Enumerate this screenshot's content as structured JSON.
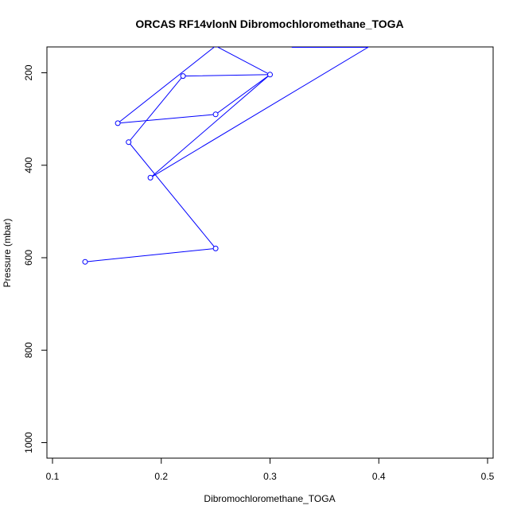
{
  "chart_data": {
    "type": "line",
    "title": "ORCAS RF14vlonN Dibromochloromethane_TOGA",
    "xlabel": "Dibromochloromethane_TOGA",
    "ylabel": "Pressure (mbar)",
    "xlim": [
      0.1,
      0.5
    ],
    "ylim": [
      1000,
      145
    ],
    "y_axis_reversed": true,
    "x_ticks": [
      0.1,
      0.2,
      0.3,
      0.4,
      0.5
    ],
    "x_tick_labels": [
      "0.1",
      "0.2",
      "0.3",
      "0.4",
      "0.5"
    ],
    "y_ticks": [
      200,
      400,
      600,
      800,
      1000
    ],
    "y_tick_labels": [
      "200",
      "400",
      "600",
      "800",
      "1000"
    ],
    "grid": false,
    "legend": "none",
    "colors": {
      "series": "#0000ff",
      "axes": "#000000",
      "background": "#ffffff"
    },
    "series": [
      {
        "x": [
          0.13,
          0.25,
          0.17,
          0.22,
          0.3,
          0.25,
          0.16,
          0.25,
          0.3,
          0.19,
          0.39,
          0.32
        ],
        "y": [
          609,
          580,
          350,
          207,
          204,
          290,
          309,
          142,
          204,
          427,
          145,
          145
        ],
        "markers": [
          true,
          true,
          true,
          true,
          true,
          true,
          true,
          false,
          false,
          true,
          false,
          false
        ],
        "segments": [
          [
            0,
            6
          ],
          [
            6,
            9
          ],
          [
            9,
            11
          ]
        ]
      }
    ]
  }
}
